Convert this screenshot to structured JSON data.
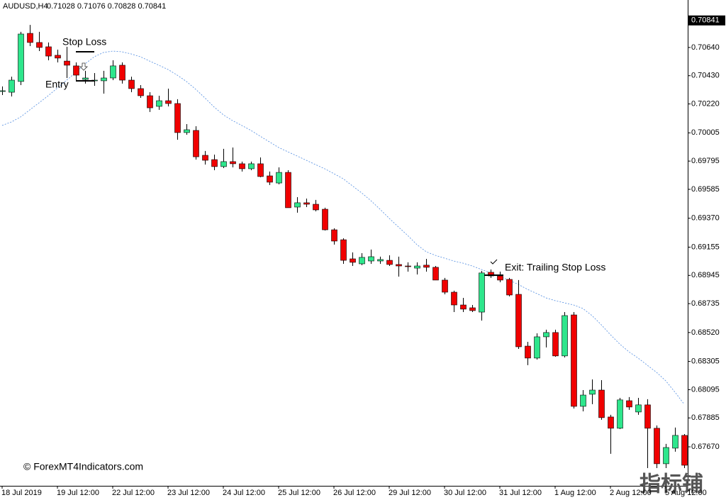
{
  "chart_data": {
    "type": "candlestick",
    "title": "AUDUSD,H4",
    "header_values": "0.71028 0.71076 0.70828 0.70841",
    "categories": [
      "18 Jul 2019",
      null,
      null,
      null,
      null,
      null,
      "19 Jul 12:00",
      null,
      null,
      null,
      null,
      null,
      "22 Jul 12:00",
      null,
      null,
      null,
      null,
      null,
      "23 Jul 12:00",
      null,
      null,
      null,
      null,
      null,
      "24 Jul 12:00",
      null,
      null,
      null,
      null,
      null,
      "25 Jul 12:00",
      null,
      null,
      null,
      null,
      null,
      "26 Jul 12:00",
      null,
      null,
      null,
      null,
      null,
      "29 Jul 12:00",
      null,
      null,
      null,
      null,
      null,
      "30 Jul 12:00",
      null,
      null,
      null,
      null,
      null,
      "31 Jul 12:00",
      null,
      null,
      null,
      null,
      null,
      "1 Aug 12:00",
      null,
      null,
      null,
      null,
      null,
      "2 Aug 12:00",
      null,
      null,
      null,
      null,
      null,
      "5 Aug 12:00",
      null,
      null
    ],
    "open": [
      0.70318,
      0.70307,
      0.70387,
      0.70745,
      0.70677,
      0.70645,
      0.70582,
      0.70539,
      0.70503,
      0.70402,
      0.70392,
      0.70392,
      0.70413,
      0.70508,
      0.70397,
      0.70334,
      0.70281,
      0.70202,
      0.70244,
      0.70223,
      0.70007,
      0.70023,
      0.69838,
      0.69806,
      0.69754,
      0.69791,
      0.69775,
      0.69738,
      0.69775,
      0.69685,
      0.69632,
      0.69711,
      0.69453,
      0.69485,
      0.69474,
      0.69437,
      0.69284,
      0.6921,
      0.69068,
      0.69031,
      0.69052,
      0.69052,
      0.69057,
      0.69026,
      0.69015,
      0.68999,
      0.69021,
      0.69005,
      0.6891,
      0.6882,
      0.68725,
      0.68704,
      0.68672,
      0.68968,
      0.68941,
      0.68915,
      0.68804,
      0.68419,
      0.6833,
      0.68488,
      0.6852,
      0.68346,
      0.68651,
      0.67971,
      0.68061,
      0.68092,
      0.67892,
      0.67808,
      0.68013,
      0.67929,
      0.67982,
      0.67808,
      0.67544,
      0.6766,
      0.67755
    ],
    "high": [
      0.7035,
      0.70423,
      0.70756,
      0.70808,
      0.70756,
      0.70677,
      0.70624,
      0.70645,
      0.70529,
      0.70466,
      0.7045,
      0.70466,
      0.70545,
      0.70529,
      0.70423,
      0.7036,
      0.70307,
      0.70281,
      0.70334,
      0.70255,
      0.7007,
      0.70054,
      0.6987,
      0.69843,
      0.69886,
      0.69896,
      0.69791,
      0.69791,
      0.69822,
      0.69717,
      0.69748,
      0.69727,
      0.69527,
      0.69516,
      0.69506,
      0.69448,
      0.69295,
      0.69221,
      0.69116,
      0.6911,
      0.69137,
      0.69084,
      0.69094,
      0.69084,
      0.69042,
      0.69042,
      0.69068,
      0.69015,
      0.68926,
      0.68831,
      0.68778,
      0.68725,
      0.68978,
      0.68989,
      0.68973,
      0.68926,
      0.6891,
      0.68451,
      0.68514,
      0.68541,
      0.68541,
      0.68672,
      0.68672,
      0.68092,
      0.68171,
      0.68166,
      0.67908,
      0.68034,
      0.6804,
      0.68034,
      0.68024,
      0.67829,
      0.67692,
      0.67813,
      0.67765
    ],
    "low": [
      0.70286,
      0.70276,
      0.7036,
      0.7065,
      0.70613,
      0.70545,
      0.70529,
      0.70413,
      0.70387,
      0.70371,
      0.70355,
      0.70297,
      0.70397,
      0.70371,
      0.70307,
      0.70265,
      0.7016,
      0.70176,
      0.70202,
      0.69954,
      0.69991,
      0.69806,
      0.69769,
      0.69727,
      0.69743,
      0.69748,
      0.69717,
      0.69727,
      0.69675,
      0.69617,
      0.69622,
      0.69448,
      0.69411,
      0.69453,
      0.69421,
      0.69279,
      0.69174,
      0.69031,
      0.69015,
      0.69021,
      0.69031,
      0.69031,
      0.69015,
      0.68936,
      0.68973,
      0.68952,
      0.68973,
      0.6891,
      0.68804,
      0.68672,
      0.68672,
      0.68672,
      0.68609,
      0.68926,
      0.68894,
      0.68789,
      0.68398,
      0.68277,
      0.68319,
      0.68409,
      0.6834,
      0.68335,
      0.67955,
      0.67934,
      0.67987,
      0.67871,
      0.67618,
      0.67802,
      0.67945,
      0.67908,
      0.67512,
      0.67512,
      0.67512,
      0.67634,
      0.67512
    ],
    "close": [
      0.70318,
      0.70397,
      0.7074,
      0.70677,
      0.7064,
      0.70576,
      0.70561,
      0.70508,
      0.70434,
      0.70413,
      0.70397,
      0.70413,
      0.70503,
      0.70397,
      0.70334,
      0.70281,
      0.70191,
      0.70244,
      0.70223,
      0.70007,
      0.70028,
      0.69827,
      0.69801,
      0.69754,
      0.69791,
      0.69775,
      0.69738,
      0.69775,
      0.6968,
      0.69638,
      0.69711,
      0.69448,
      0.69485,
      0.69474,
      0.69432,
      0.69284,
      0.692,
      0.69057,
      0.69042,
      0.69079,
      0.69084,
      0.69063,
      0.69026,
      0.69015,
      0.6901,
      0.69015,
      0.69005,
      0.6891,
      0.6882,
      0.68725,
      0.68694,
      0.68683,
      0.68963,
      0.68941,
      0.6891,
      0.68799,
      0.68414,
      0.6833,
      0.68488,
      0.6852,
      0.68346,
      0.68646,
      0.67971,
      0.68055,
      0.68092,
      0.67887,
      0.67808,
      0.68019,
      0.67966,
      0.67982,
      0.67808,
      0.67544,
      0.67665,
      0.67755,
      0.67533
    ],
    "up_color": "#2ee68c",
    "down_color": "#f00000",
    "indicator": {
      "color": "#4f8be0",
      "values": [
        0.7006,
        0.70086,
        0.70123,
        0.70176,
        0.70228,
        0.70281,
        0.70339,
        0.70397,
        0.70455,
        0.70518,
        0.70571,
        0.70603,
        0.70613,
        0.70608,
        0.70592,
        0.70571,
        0.70539,
        0.70508,
        0.70476,
        0.70434,
        0.70387,
        0.70329,
        0.70265,
        0.70197,
        0.70139,
        0.70096,
        0.7006,
        0.70023,
        0.6998,
        0.69938,
        0.69896,
        0.69864,
        0.69833,
        0.69801,
        0.69769,
        0.69738,
        0.69701,
        0.69664,
        0.69611,
        0.69559,
        0.69501,
        0.69437,
        0.69369,
        0.69305,
        0.69242,
        0.69174,
        0.69121,
        0.69094,
        0.69073,
        0.69052,
        0.69036,
        0.69015,
        0.68989,
        0.68963,
        0.68936,
        0.6891,
        0.68878,
        0.68841,
        0.6881,
        0.68778,
        0.68757,
        0.68741,
        0.68725,
        0.68699,
        0.68646,
        0.68578,
        0.68504,
        0.68435,
        0.68377,
        0.6833,
        0.68277,
        0.68224,
        0.68161,
        0.68077,
        0.67987
      ]
    },
    "ylim": [
      0.6738,
      0.70993
    ],
    "yticks": [
      {
        "value": 0.7064,
        "label": "0.70640"
      },
      {
        "value": 0.7043,
        "label": "0.70430"
      },
      {
        "value": 0.7022,
        "label": "0.70220"
      },
      {
        "value": 0.70005,
        "label": "0.70005"
      },
      {
        "value": 0.69795,
        "label": "0.69795"
      },
      {
        "value": 0.69585,
        "label": "0.69585"
      },
      {
        "value": 0.6937,
        "label": "0.69370"
      },
      {
        "value": 0.69155,
        "label": "0.69155"
      },
      {
        "value": 0.68945,
        "label": "0.68945"
      },
      {
        "value": 0.68735,
        "label": "0.68735"
      },
      {
        "value": 0.6852,
        "label": "0.68520"
      },
      {
        "value": 0.68305,
        "label": "0.68305"
      },
      {
        "value": 0.68095,
        "label": "0.68095"
      },
      {
        "value": 0.67885,
        "label": "0.67885"
      },
      {
        "value": 0.6767,
        "label": "0.67670"
      }
    ],
    "current_price": 0.70841,
    "annotations": {
      "stop_loss": "Stop Loss",
      "entry": "Entry",
      "exit": "Exit: Trailing Stop Loss"
    },
    "watermark": "© ForexMT4Indicators.com",
    "corner_watermark": "指标铺"
  }
}
